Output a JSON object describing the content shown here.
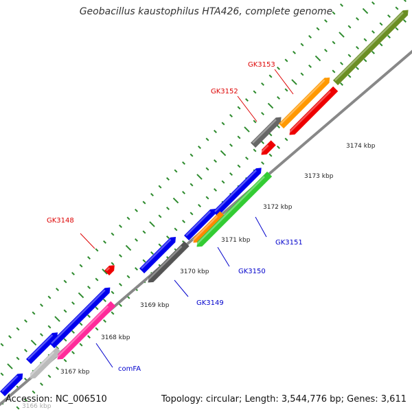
{
  "title": "Geobacillus kaustophilus HTA426, complete genome",
  "footer": {
    "accession": "Accession: NC_006510",
    "summary": "Topology: circular; Length: 3,544,776 bp; Genes: 3,611"
  },
  "colors": {
    "backbone": "#888888",
    "tick": "#2e8b2e",
    "label_red": "#dd0000",
    "label_blue": "#0000cc"
  },
  "kbp_labels": [
    "3166 kbp",
    "3167 kbp",
    "3168 kbp",
    "3169 kbp",
    "3170 kbp",
    "3171 kbp",
    "3172 kbp",
    "3173 kbp",
    "3174 kbp"
  ],
  "gene_labels": [
    {
      "text": "GK3148",
      "color": "red"
    },
    {
      "text": "GK3149",
      "color": "blue"
    },
    {
      "text": "GK3150",
      "color": "blue"
    },
    {
      "text": "GK3151",
      "color": "blue"
    },
    {
      "text": "GK3152",
      "color": "red"
    },
    {
      "text": "GK3153",
      "color": "red"
    },
    {
      "text": "comFA",
      "color": "blue"
    }
  ],
  "features": [
    {
      "strand": "+",
      "color": "#0000ee"
    },
    {
      "strand": "+",
      "color": "#0000ee"
    },
    {
      "strand": "+",
      "color": "#0000ee"
    },
    {
      "strand": "+",
      "color": "#0000ee"
    },
    {
      "strand": "+",
      "color": "#0000ee"
    },
    {
      "strand": "+",
      "color": "#0000ee"
    },
    {
      "strand": "+",
      "color": "#0000ee"
    },
    {
      "strand": "+",
      "color": "#ee0000"
    },
    {
      "strand": "+",
      "color": "#666666"
    },
    {
      "strand": "+",
      "color": "#ff9900"
    },
    {
      "strand": "+",
      "color": "#6b8e23"
    },
    {
      "strand": "-",
      "color": "#bbbbbb"
    },
    {
      "strand": "-",
      "color": "#ff2a9a"
    },
    {
      "strand": "-",
      "color": "#555555"
    },
    {
      "strand": "-",
      "color": "#ff8800"
    },
    {
      "strand": "-",
      "color": "#33cc33"
    },
    {
      "strand": "-",
      "color": "#ee0000"
    },
    {
      "strand": "-",
      "color": "#ee0000"
    }
  ]
}
